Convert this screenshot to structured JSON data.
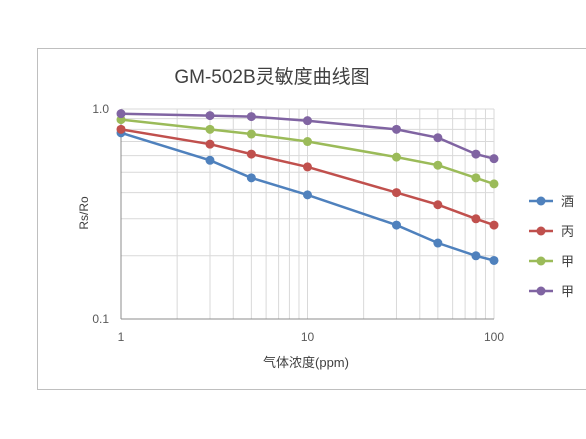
{
  "chart_data": {
    "type": "line",
    "title": "GM-502B灵敏度曲线图",
    "xlabel": "气体浓度(ppm)",
    "ylabel": "Rs/Ro",
    "x_scale": "log",
    "y_scale": "log",
    "xlim": [
      1,
      100
    ],
    "ylim": [
      0.1,
      1.0
    ],
    "x_ticks": [
      "1",
      "10",
      "100"
    ],
    "y_ticks": [
      "1.0",
      "0.1"
    ],
    "grid": true,
    "legend_position": "right",
    "x": [
      1,
      3,
      5,
      10,
      30,
      50,
      80,
      100
    ],
    "series": [
      {
        "name": "酒",
        "color": "#4f81bd",
        "values": [
          0.77,
          0.57,
          0.47,
          0.39,
          0.28,
          0.23,
          0.2,
          0.19
        ]
      },
      {
        "name": "丙",
        "color": "#c0504d",
        "values": [
          0.8,
          0.68,
          0.61,
          0.53,
          0.4,
          0.35,
          0.3,
          0.28
        ]
      },
      {
        "name": "甲",
        "color": "#9bbb59",
        "values": [
          0.89,
          0.8,
          0.76,
          0.7,
          0.59,
          0.54,
          0.47,
          0.44
        ]
      },
      {
        "name": "甲",
        "color": "#8064a2",
        "values": [
          0.95,
          0.93,
          0.92,
          0.88,
          0.8,
          0.73,
          0.61,
          0.58
        ]
      }
    ]
  }
}
